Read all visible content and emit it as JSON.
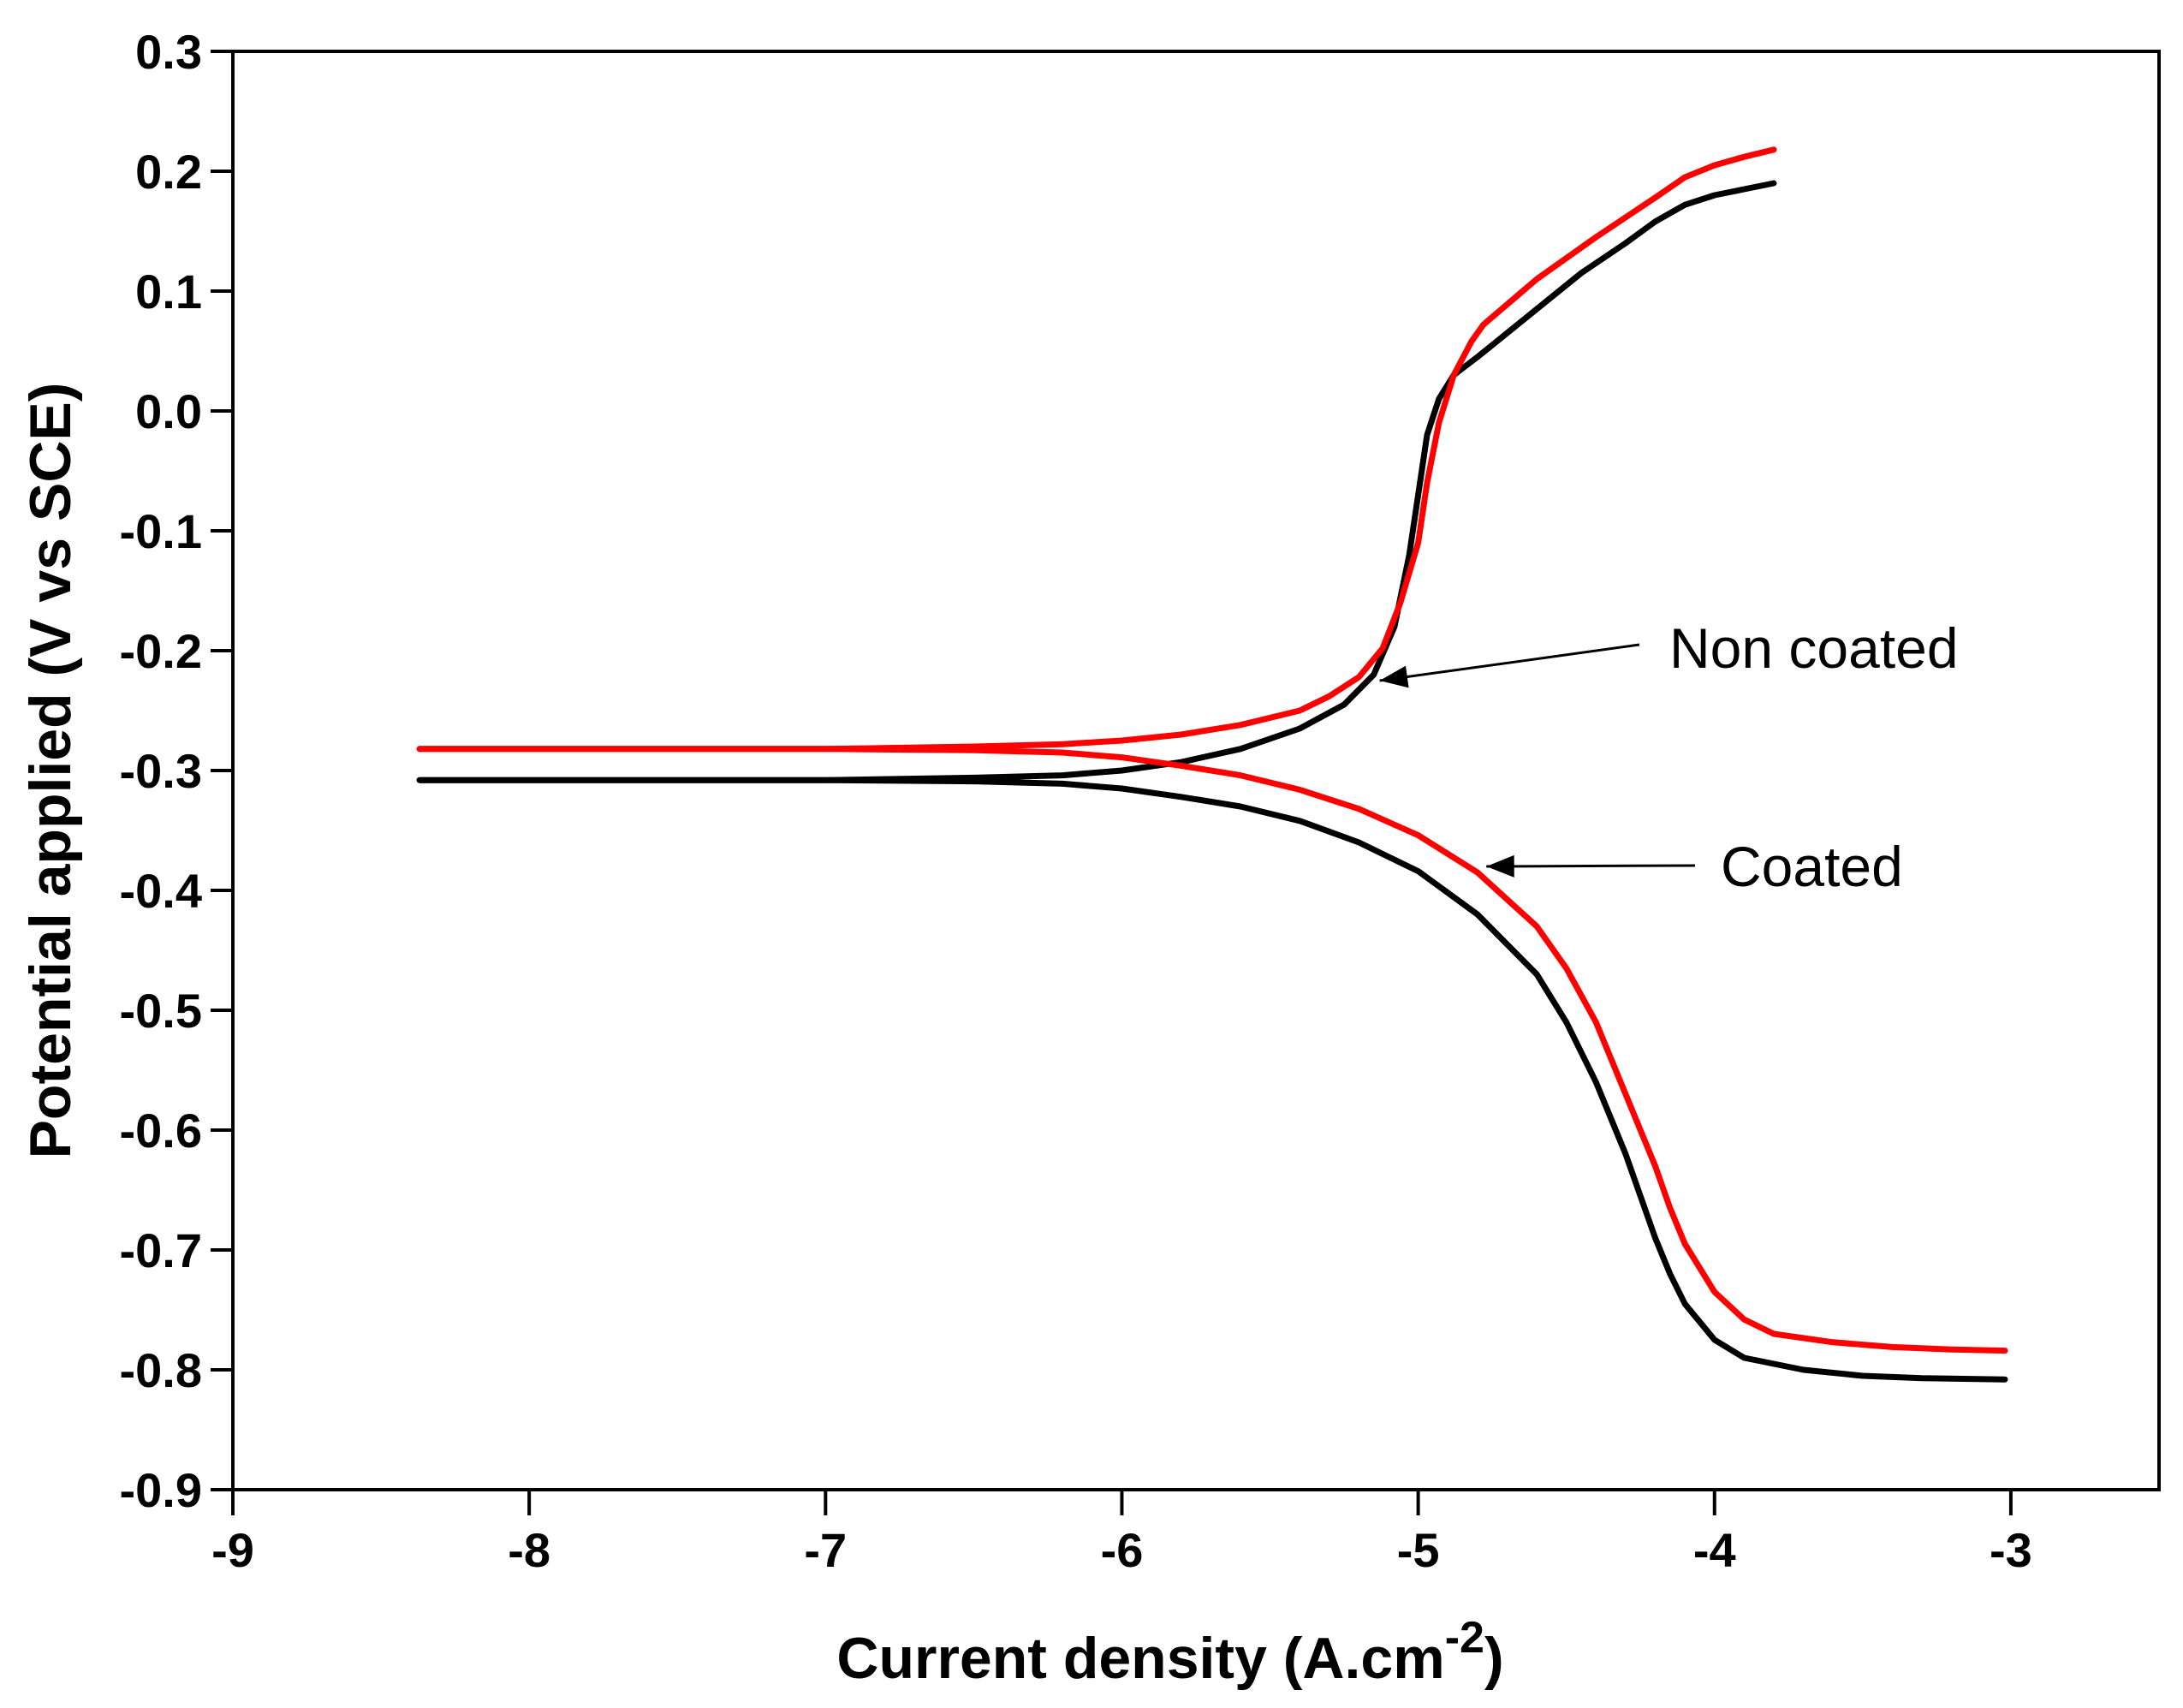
{
  "chart_data": {
    "type": "line",
    "title": "",
    "xlabel": "Current density (A.cm",
    "xlabel_sup": "-2",
    "xlabel_close": ")",
    "ylabel": "Potential applied (V vs SCE)",
    "xlim": [
      -9,
      -2.5
    ],
    "ylim": [
      -0.9,
      0.3
    ],
    "x_ticks": [
      -9,
      -8,
      -7,
      -6,
      -5,
      -4,
      -3
    ],
    "x_tick_labels": [
      "-9",
      "-8",
      "-7",
      "-6",
      "-5",
      "-4",
      "-3"
    ],
    "y_ticks": [
      0.3,
      0.2,
      0.1,
      0.0,
      -0.1,
      -0.2,
      -0.3,
      -0.4,
      -0.5,
      -0.6,
      -0.7,
      -0.8,
      -0.9
    ],
    "y_tick_labels": [
      "0.3",
      "0.2",
      "0.1",
      "0.0",
      "-0.1",
      "-0.2",
      "-0.3",
      "-0.4",
      "-0.5",
      "-0.6",
      "-0.7",
      "-0.8",
      "-0.9"
    ],
    "grid": false,
    "series": [
      {
        "name": "Non coated",
        "color": "#000000",
        "anodic": {
          "x": [
            -8.37,
            -7.5,
            -7.0,
            -6.5,
            -6.2,
            -6.0,
            -5.8,
            -5.6,
            -5.4,
            -5.25,
            -5.15,
            -5.08,
            -5.03,
            -5.0,
            -4.97,
            -4.93,
            -4.88,
            -4.8,
            -4.75,
            -4.6,
            -4.45,
            -4.3,
            -4.2,
            -4.1,
            -4.0,
            -3.9,
            -3.8
          ],
          "y": [
            -0.308,
            -0.308,
            -0.308,
            -0.306,
            -0.304,
            -0.3,
            -0.293,
            -0.282,
            -0.265,
            -0.245,
            -0.22,
            -0.18,
            -0.12,
            -0.07,
            -0.02,
            0.01,
            0.03,
            0.045,
            0.055,
            0.085,
            0.115,
            0.14,
            0.158,
            0.172,
            0.18,
            0.185,
            0.19
          ]
        },
        "cathodic": {
          "x": [
            -8.37,
            -7.5,
            -7.0,
            -6.5,
            -6.2,
            -6.0,
            -5.8,
            -5.6,
            -5.4,
            -5.2,
            -5.0,
            -4.8,
            -4.6,
            -4.5,
            -4.4,
            -4.3,
            -4.25,
            -4.2,
            -4.15,
            -4.1,
            -4.0,
            -3.9,
            -3.7,
            -3.5,
            -3.3,
            -3.02
          ],
          "y": [
            -0.308,
            -0.308,
            -0.308,
            -0.309,
            -0.311,
            -0.315,
            -0.322,
            -0.33,
            -0.342,
            -0.36,
            -0.384,
            -0.42,
            -0.47,
            -0.51,
            -0.56,
            -0.62,
            -0.655,
            -0.69,
            -0.72,
            -0.745,
            -0.775,
            -0.79,
            -0.8,
            -0.805,
            -0.807,
            -0.808
          ]
        }
      },
      {
        "name": "Coated",
        "color": "#ff0000",
        "anodic": {
          "x": [
            -8.37,
            -7.5,
            -7.0,
            -6.5,
            -6.2,
            -6.0,
            -5.8,
            -5.6,
            -5.4,
            -5.3,
            -5.2,
            -5.12,
            -5.06,
            -5.0,
            -4.97,
            -4.93,
            -4.88,
            -4.82,
            -4.78,
            -4.6,
            -4.4,
            -4.2,
            -4.1,
            -4.0,
            -3.9,
            -3.8
          ],
          "y": [
            -0.282,
            -0.282,
            -0.282,
            -0.28,
            -0.278,
            -0.275,
            -0.27,
            -0.262,
            -0.25,
            -0.238,
            -0.222,
            -0.198,
            -0.16,
            -0.11,
            -0.06,
            -0.01,
            0.03,
            0.058,
            0.072,
            0.11,
            0.145,
            0.178,
            0.195,
            0.205,
            0.212,
            0.218
          ]
        },
        "cathodic": {
          "x": [
            -8.37,
            -7.5,
            -7.0,
            -6.5,
            -6.2,
            -6.0,
            -5.8,
            -5.6,
            -5.4,
            -5.2,
            -5.0,
            -4.8,
            -4.6,
            -4.5,
            -4.4,
            -4.3,
            -4.2,
            -4.15,
            -4.1,
            -4.0,
            -3.9,
            -3.8,
            -3.6,
            -3.4,
            -3.2,
            -3.02
          ],
          "y": [
            -0.282,
            -0.282,
            -0.282,
            -0.283,
            -0.285,
            -0.289,
            -0.296,
            -0.304,
            -0.316,
            -0.332,
            -0.354,
            -0.385,
            -0.43,
            -0.465,
            -0.51,
            -0.57,
            -0.63,
            -0.665,
            -0.695,
            -0.735,
            -0.758,
            -0.77,
            -0.777,
            -0.781,
            -0.783,
            -0.784
          ]
        }
      }
    ],
    "annotations": [
      {
        "text": "Non coated",
        "points_to_series": "Non coated",
        "target": [
          -5.13,
          -0.225
        ]
      },
      {
        "text": "Coated",
        "points_to_series": "Coated",
        "target": [
          -4.77,
          -0.38
        ]
      }
    ]
  }
}
